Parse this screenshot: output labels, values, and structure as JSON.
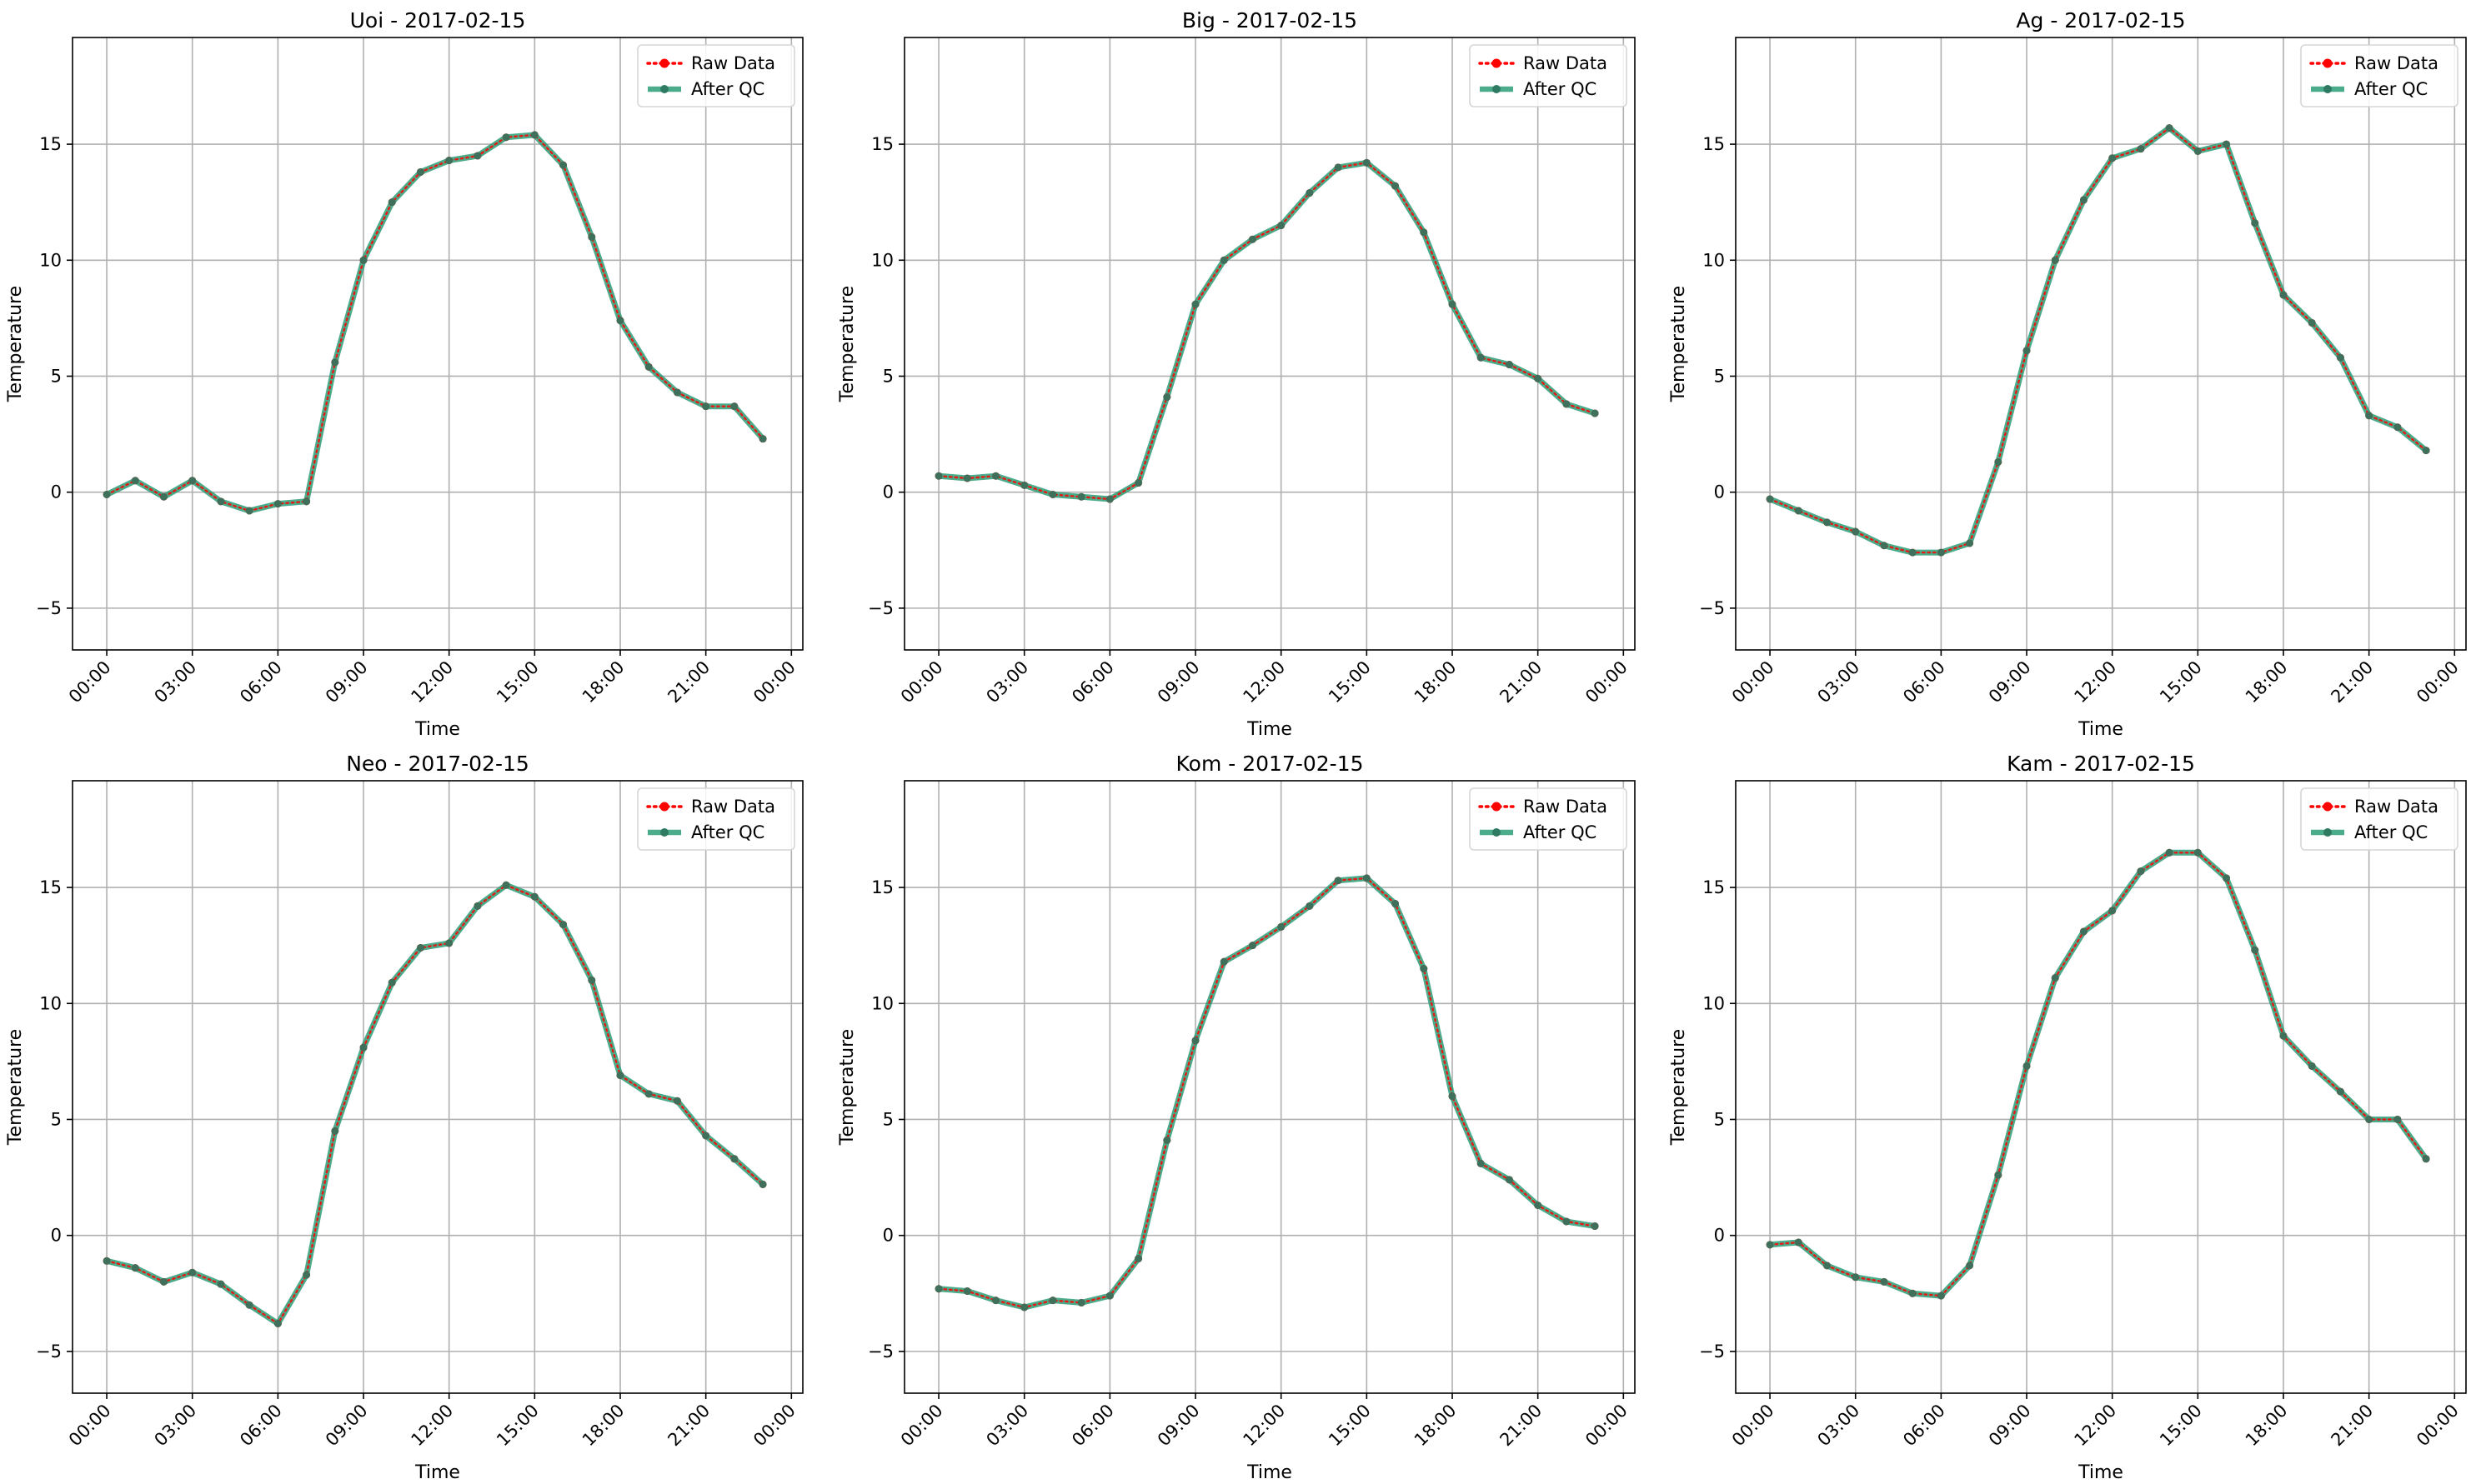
{
  "chart_data": [
    {
      "type": "line",
      "title": "Uoi - 2017-02-15",
      "xlabel": "Time",
      "ylabel": "Temperature",
      "ylim": [
        -6.8,
        19.6
      ],
      "yticks": [
        -5,
        0,
        5,
        10,
        15
      ],
      "xticks": [
        "00:00",
        "03:00",
        "06:00",
        "09:00",
        "12:00",
        "15:00",
        "18:00",
        "21:00",
        "00:00"
      ],
      "x_hours": [
        0,
        1,
        2,
        3,
        4,
        5,
        6,
        7,
        8,
        9,
        10,
        11,
        12,
        13,
        14,
        15,
        16,
        17,
        18,
        19,
        20,
        21,
        22,
        23
      ],
      "series": [
        {
          "name": "Raw Data",
          "color": "#ff0000",
          "values": [
            -0.1,
            0.5,
            -0.2,
            0.5,
            -0.4,
            -0.8,
            -0.5,
            -0.4,
            5.6,
            10.0,
            12.5,
            13.8,
            14.3,
            14.5,
            15.3,
            15.4,
            14.1,
            11.0,
            7.4,
            5.4,
            4.3,
            3.7,
            3.7,
            2.3
          ]
        },
        {
          "name": "After QC",
          "color": "#2a9d75",
          "values": [
            -0.1,
            0.5,
            -0.2,
            0.5,
            -0.4,
            -0.8,
            -0.5,
            -0.4,
            5.6,
            10.0,
            12.5,
            13.8,
            14.3,
            14.5,
            15.3,
            15.4,
            14.1,
            11.0,
            7.4,
            5.4,
            4.3,
            3.7,
            3.7,
            2.3
          ]
        }
      ],
      "grid": true,
      "legend": "upper right"
    },
    {
      "type": "line",
      "title": "Big - 2017-02-15",
      "xlabel": "Time",
      "ylabel": "Temperature",
      "ylim": [
        -6.8,
        19.6
      ],
      "yticks": [
        -5,
        0,
        5,
        10,
        15
      ],
      "xticks": [
        "00:00",
        "03:00",
        "06:00",
        "09:00",
        "12:00",
        "15:00",
        "18:00",
        "21:00",
        "00:00"
      ],
      "x_hours": [
        0,
        1,
        2,
        3,
        4,
        5,
        6,
        7,
        8,
        9,
        10,
        11,
        12,
        13,
        14,
        15,
        16,
        17,
        18,
        19,
        20,
        21,
        22,
        23
      ],
      "series": [
        {
          "name": "Raw Data",
          "color": "#ff0000",
          "values": [
            0.7,
            0.6,
            0.7,
            0.3,
            -0.1,
            -0.2,
            -0.3,
            0.4,
            4.1,
            8.1,
            10.0,
            10.9,
            11.5,
            12.9,
            14.0,
            14.2,
            13.2,
            11.2,
            8.1,
            5.8,
            5.5,
            4.9,
            3.8,
            3.4
          ]
        },
        {
          "name": "After QC",
          "color": "#2a9d75",
          "values": [
            0.7,
            0.6,
            0.7,
            0.3,
            -0.1,
            -0.2,
            -0.3,
            0.4,
            4.1,
            8.1,
            10.0,
            10.9,
            11.5,
            12.9,
            14.0,
            14.2,
            13.2,
            11.2,
            8.1,
            5.8,
            5.5,
            4.9,
            3.8,
            3.4
          ]
        }
      ],
      "grid": true,
      "legend": "upper right"
    },
    {
      "type": "line",
      "title": "Ag - 2017-02-15",
      "xlabel": "Time",
      "ylabel": "Temperature",
      "ylim": [
        -6.8,
        19.6
      ],
      "yticks": [
        -5,
        0,
        5,
        10,
        15
      ],
      "xticks": [
        "00:00",
        "03:00",
        "06:00",
        "09:00",
        "12:00",
        "15:00",
        "18:00",
        "21:00",
        "00:00"
      ],
      "x_hours": [
        0,
        1,
        2,
        3,
        4,
        5,
        6,
        7,
        8,
        9,
        10,
        11,
        12,
        13,
        14,
        15,
        16,
        17,
        18,
        19,
        20,
        21,
        22,
        23
      ],
      "series": [
        {
          "name": "Raw Data",
          "color": "#ff0000",
          "values": [
            -0.3,
            -0.8,
            -1.3,
            -1.7,
            -2.3,
            -2.6,
            -2.6,
            -2.2,
            1.3,
            6.1,
            10.0,
            12.6,
            14.4,
            14.8,
            15.7,
            14.7,
            15.0,
            11.6,
            8.5,
            7.3,
            5.8,
            3.3,
            2.8,
            1.8
          ]
        },
        {
          "name": "After QC",
          "color": "#2a9d75",
          "values": [
            -0.3,
            -0.8,
            -1.3,
            -1.7,
            -2.3,
            -2.6,
            -2.6,
            -2.2,
            1.3,
            6.1,
            10.0,
            12.6,
            14.4,
            14.8,
            15.7,
            14.7,
            15.0,
            11.6,
            8.5,
            7.3,
            5.8,
            3.3,
            2.8,
            1.8
          ]
        }
      ],
      "grid": true,
      "legend": "upper right"
    },
    {
      "type": "line",
      "title": "Neo - 2017-02-15",
      "xlabel": "Time",
      "ylabel": "Temperature",
      "ylim": [
        -6.8,
        19.6
      ],
      "yticks": [
        -5,
        0,
        5,
        10,
        15
      ],
      "xticks": [
        "00:00",
        "03:00",
        "06:00",
        "09:00",
        "12:00",
        "15:00",
        "18:00",
        "21:00",
        "00:00"
      ],
      "x_hours": [
        0,
        1,
        2,
        3,
        4,
        5,
        6,
        7,
        8,
        9,
        10,
        11,
        12,
        13,
        14,
        15,
        16,
        17,
        18,
        19,
        20,
        21,
        22,
        23
      ],
      "series": [
        {
          "name": "Raw Data",
          "color": "#ff0000",
          "values": [
            -1.1,
            -1.4,
            -2.0,
            -1.6,
            -2.1,
            -3.0,
            -3.8,
            -1.7,
            4.5,
            8.1,
            10.9,
            12.4,
            12.6,
            14.2,
            15.1,
            14.6,
            13.4,
            11.0,
            6.9,
            6.1,
            5.8,
            4.3,
            3.3,
            2.2
          ]
        },
        {
          "name": "After QC",
          "color": "#2a9d75",
          "values": [
            -1.1,
            -1.4,
            -2.0,
            -1.6,
            -2.1,
            -3.0,
            -3.8,
            -1.7,
            4.5,
            8.1,
            10.9,
            12.4,
            12.6,
            14.2,
            15.1,
            14.6,
            13.4,
            11.0,
            6.9,
            6.1,
            5.8,
            4.3,
            3.3,
            2.2
          ]
        }
      ],
      "grid": true,
      "legend": "upper right"
    },
    {
      "type": "line",
      "title": "Kom - 2017-02-15",
      "xlabel": "Time",
      "ylabel": "Temperature",
      "ylim": [
        -6.8,
        19.6
      ],
      "yticks": [
        -5,
        0,
        5,
        10,
        15
      ],
      "xticks": [
        "00:00",
        "03:00",
        "06:00",
        "09:00",
        "12:00",
        "15:00",
        "18:00",
        "21:00",
        "00:00"
      ],
      "x_hours": [
        0,
        1,
        2,
        3,
        4,
        5,
        6,
        7,
        8,
        9,
        10,
        11,
        12,
        13,
        14,
        15,
        16,
        17,
        18,
        19,
        20,
        21,
        22,
        23
      ],
      "series": [
        {
          "name": "Raw Data",
          "color": "#ff0000",
          "values": [
            -2.3,
            -2.4,
            -2.8,
            -3.1,
            -2.8,
            -2.9,
            -2.6,
            -1.0,
            4.1,
            8.4,
            11.8,
            12.5,
            13.3,
            14.2,
            15.3,
            15.4,
            14.3,
            11.5,
            6.0,
            3.1,
            2.4,
            1.3,
            0.6,
            0.4
          ]
        },
        {
          "name": "After QC",
          "color": "#2a9d75",
          "values": [
            -2.3,
            -2.4,
            -2.8,
            -3.1,
            -2.8,
            -2.9,
            -2.6,
            -1.0,
            4.1,
            8.4,
            11.8,
            12.5,
            13.3,
            14.2,
            15.3,
            15.4,
            14.3,
            11.5,
            6.0,
            3.1,
            2.4,
            1.3,
            0.6,
            0.4
          ]
        }
      ],
      "grid": true,
      "legend": "upper right"
    },
    {
      "type": "line",
      "title": "Kam - 2017-02-15",
      "xlabel": "Time",
      "ylabel": "Temperature",
      "ylim": [
        -6.8,
        19.6
      ],
      "yticks": [
        -5,
        0,
        5,
        10,
        15
      ],
      "xticks": [
        "00:00",
        "03:00",
        "06:00",
        "09:00",
        "12:00",
        "15:00",
        "18:00",
        "21:00",
        "00:00"
      ],
      "x_hours": [
        0,
        1,
        2,
        3,
        4,
        5,
        6,
        7,
        8,
        9,
        10,
        11,
        12,
        13,
        14,
        15,
        16,
        17,
        18,
        19,
        20,
        21,
        22,
        23
      ],
      "series": [
        {
          "name": "Raw Data",
          "color": "#ff0000",
          "values": [
            -0.4,
            -0.3,
            -1.3,
            -1.8,
            -2.0,
            -2.5,
            -2.6,
            -1.3,
            2.6,
            7.3,
            11.1,
            13.1,
            14.0,
            15.7,
            16.5,
            16.5,
            15.4,
            12.3,
            8.6,
            7.3,
            6.2,
            5.0,
            5.0,
            3.3
          ]
        },
        {
          "name": "After QC",
          "color": "#2a9d75",
          "values": [
            -0.4,
            -0.3,
            -1.3,
            -1.8,
            -2.0,
            -2.5,
            -2.6,
            -1.3,
            2.6,
            7.3,
            11.1,
            13.1,
            14.0,
            15.7,
            16.5,
            16.5,
            15.4,
            12.3,
            8.6,
            7.3,
            6.2,
            5.0,
            5.0,
            3.3
          ]
        }
      ],
      "grid": true,
      "legend": "upper right"
    }
  ]
}
